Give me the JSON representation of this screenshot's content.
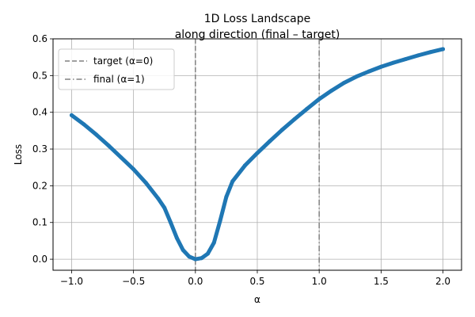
{
  "chart_data": {
    "type": "line",
    "title": "1D Loss Landscape",
    "subtitle": "along direction (final – target)",
    "xlabel": "α",
    "ylabel": "Loss",
    "xlim": [
      -1.15,
      2.15
    ],
    "ylim": [
      -0.03,
      0.6
    ],
    "grid": true,
    "legend_position": "top-left",
    "x_ticks": [
      -1.0,
      -0.5,
      0.0,
      0.5,
      1.0,
      1.5,
      2.0
    ],
    "x_tick_labels": [
      "−1.0",
      "−0.5",
      "0.0",
      "0.5",
      "1.0",
      "1.5",
      "2.0"
    ],
    "y_ticks": [
      0.0,
      0.1,
      0.2,
      0.3,
      0.4,
      0.5,
      0.6
    ],
    "y_tick_labels": [
      "0.0",
      "0.1",
      "0.2",
      "0.3",
      "0.4",
      "0.5",
      "0.6"
    ],
    "series": [
      {
        "color": "#1f77b4",
        "x": [
          -1.0,
          -0.9,
          -0.8,
          -0.7,
          -0.6,
          -0.5,
          -0.4,
          -0.3,
          -0.25,
          -0.2,
          -0.15,
          -0.1,
          -0.05,
          0.0,
          0.05,
          0.1,
          0.15,
          0.2,
          0.25,
          0.3,
          0.4,
          0.5,
          0.6,
          0.7,
          0.8,
          0.9,
          1.0,
          1.1,
          1.2,
          1.3,
          1.4,
          1.5,
          1.6,
          1.7,
          1.8,
          1.9,
          2.0
        ],
        "y": [
          0.392,
          0.367,
          0.339,
          0.309,
          0.277,
          0.245,
          0.208,
          0.165,
          0.14,
          0.1,
          0.058,
          0.025,
          0.007,
          0.0,
          0.003,
          0.015,
          0.045,
          0.105,
          0.17,
          0.212,
          0.255,
          0.289,
          0.321,
          0.352,
          0.381,
          0.409,
          0.436,
          0.459,
          0.48,
          0.497,
          0.511,
          0.524,
          0.535,
          0.545,
          0.555,
          0.564,
          0.572
        ]
      }
    ],
    "vlines": [
      {
        "x": 0.0,
        "style": "dashed",
        "label": "target (α=0)",
        "color": "#808080"
      },
      {
        "x": 1.0,
        "style": "dashdot",
        "label": "final  (α=1)",
        "color": "#808080"
      }
    ]
  }
}
